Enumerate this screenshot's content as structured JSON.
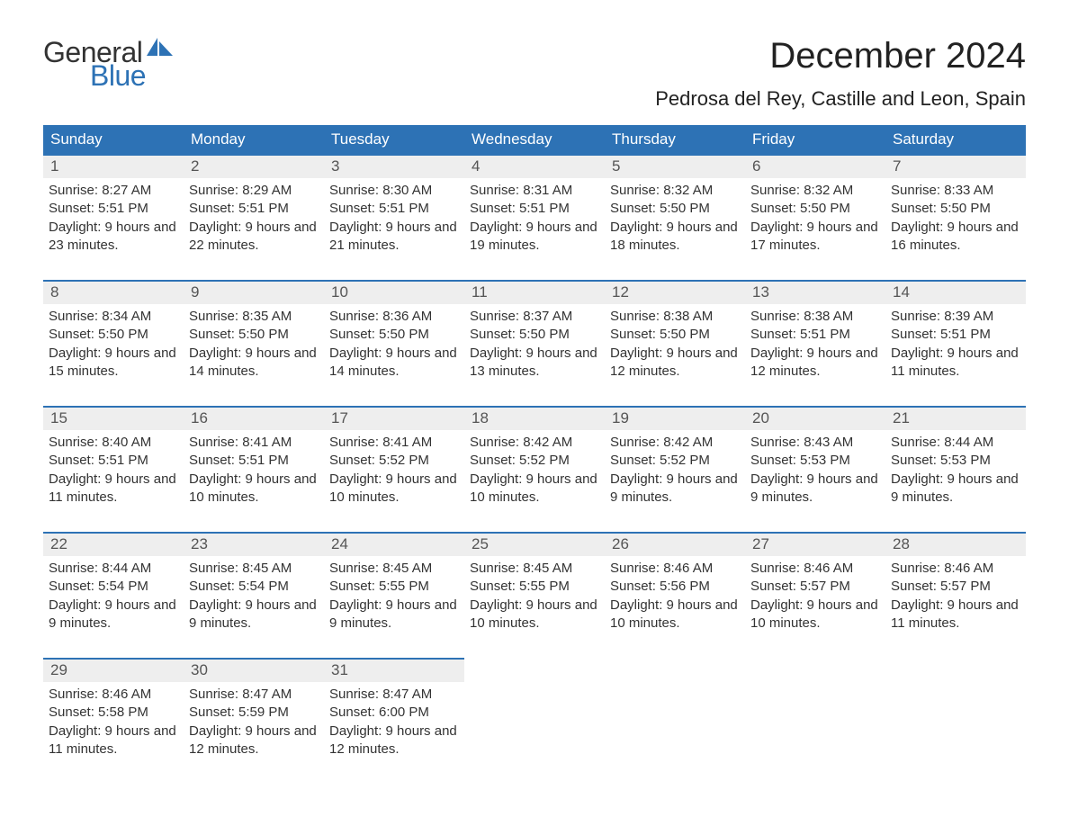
{
  "brand": {
    "word1": "General",
    "word2": "Blue",
    "logo_color": "#2d72b5"
  },
  "title": "December 2024",
  "location": "Pedrosa del Rey, Castille and Leon, Spain",
  "colors": {
    "header_bg": "#2d72b5",
    "header_text": "#ffffff",
    "daynum_bg": "#eeeeee",
    "daynum_border": "#2d72b5",
    "body_bg": "#ffffff",
    "text": "#333333"
  },
  "weekdays": [
    "Sunday",
    "Monday",
    "Tuesday",
    "Wednesday",
    "Thursday",
    "Friday",
    "Saturday"
  ],
  "labels": {
    "sunrise": "Sunrise: ",
    "sunset": "Sunset: ",
    "daylight": "Daylight: "
  },
  "days": [
    {
      "n": 1,
      "sunrise": "8:27 AM",
      "sunset": "5:51 PM",
      "daylight": "9 hours and 23 minutes."
    },
    {
      "n": 2,
      "sunrise": "8:29 AM",
      "sunset": "5:51 PM",
      "daylight": "9 hours and 22 minutes."
    },
    {
      "n": 3,
      "sunrise": "8:30 AM",
      "sunset": "5:51 PM",
      "daylight": "9 hours and 21 minutes."
    },
    {
      "n": 4,
      "sunrise": "8:31 AM",
      "sunset": "5:51 PM",
      "daylight": "9 hours and 19 minutes."
    },
    {
      "n": 5,
      "sunrise": "8:32 AM",
      "sunset": "5:50 PM",
      "daylight": "9 hours and 18 minutes."
    },
    {
      "n": 6,
      "sunrise": "8:32 AM",
      "sunset": "5:50 PM",
      "daylight": "9 hours and 17 minutes."
    },
    {
      "n": 7,
      "sunrise": "8:33 AM",
      "sunset": "5:50 PM",
      "daylight": "9 hours and 16 minutes."
    },
    {
      "n": 8,
      "sunrise": "8:34 AM",
      "sunset": "5:50 PM",
      "daylight": "9 hours and 15 minutes."
    },
    {
      "n": 9,
      "sunrise": "8:35 AM",
      "sunset": "5:50 PM",
      "daylight": "9 hours and 14 minutes."
    },
    {
      "n": 10,
      "sunrise": "8:36 AM",
      "sunset": "5:50 PM",
      "daylight": "9 hours and 14 minutes."
    },
    {
      "n": 11,
      "sunrise": "8:37 AM",
      "sunset": "5:50 PM",
      "daylight": "9 hours and 13 minutes."
    },
    {
      "n": 12,
      "sunrise": "8:38 AM",
      "sunset": "5:50 PM",
      "daylight": "9 hours and 12 minutes."
    },
    {
      "n": 13,
      "sunrise": "8:38 AM",
      "sunset": "5:51 PM",
      "daylight": "9 hours and 12 minutes."
    },
    {
      "n": 14,
      "sunrise": "8:39 AM",
      "sunset": "5:51 PM",
      "daylight": "9 hours and 11 minutes."
    },
    {
      "n": 15,
      "sunrise": "8:40 AM",
      "sunset": "5:51 PM",
      "daylight": "9 hours and 11 minutes."
    },
    {
      "n": 16,
      "sunrise": "8:41 AM",
      "sunset": "5:51 PM",
      "daylight": "9 hours and 10 minutes."
    },
    {
      "n": 17,
      "sunrise": "8:41 AM",
      "sunset": "5:52 PM",
      "daylight": "9 hours and 10 minutes."
    },
    {
      "n": 18,
      "sunrise": "8:42 AM",
      "sunset": "5:52 PM",
      "daylight": "9 hours and 10 minutes."
    },
    {
      "n": 19,
      "sunrise": "8:42 AM",
      "sunset": "5:52 PM",
      "daylight": "9 hours and 9 minutes."
    },
    {
      "n": 20,
      "sunrise": "8:43 AM",
      "sunset": "5:53 PM",
      "daylight": "9 hours and 9 minutes."
    },
    {
      "n": 21,
      "sunrise": "8:44 AM",
      "sunset": "5:53 PM",
      "daylight": "9 hours and 9 minutes."
    },
    {
      "n": 22,
      "sunrise": "8:44 AM",
      "sunset": "5:54 PM",
      "daylight": "9 hours and 9 minutes."
    },
    {
      "n": 23,
      "sunrise": "8:45 AM",
      "sunset": "5:54 PM",
      "daylight": "9 hours and 9 minutes."
    },
    {
      "n": 24,
      "sunrise": "8:45 AM",
      "sunset": "5:55 PM",
      "daylight": "9 hours and 9 minutes."
    },
    {
      "n": 25,
      "sunrise": "8:45 AM",
      "sunset": "5:55 PM",
      "daylight": "9 hours and 10 minutes."
    },
    {
      "n": 26,
      "sunrise": "8:46 AM",
      "sunset": "5:56 PM",
      "daylight": "9 hours and 10 minutes."
    },
    {
      "n": 27,
      "sunrise": "8:46 AM",
      "sunset": "5:57 PM",
      "daylight": "9 hours and 10 minutes."
    },
    {
      "n": 28,
      "sunrise": "8:46 AM",
      "sunset": "5:57 PM",
      "daylight": "9 hours and 11 minutes."
    },
    {
      "n": 29,
      "sunrise": "8:46 AM",
      "sunset": "5:58 PM",
      "daylight": "9 hours and 11 minutes."
    },
    {
      "n": 30,
      "sunrise": "8:47 AM",
      "sunset": "5:59 PM",
      "daylight": "9 hours and 12 minutes."
    },
    {
      "n": 31,
      "sunrise": "8:47 AM",
      "sunset": "6:00 PM",
      "daylight": "9 hours and 12 minutes."
    }
  ],
  "grid": {
    "start_weekday": 0,
    "rows": 5,
    "cols": 7
  }
}
